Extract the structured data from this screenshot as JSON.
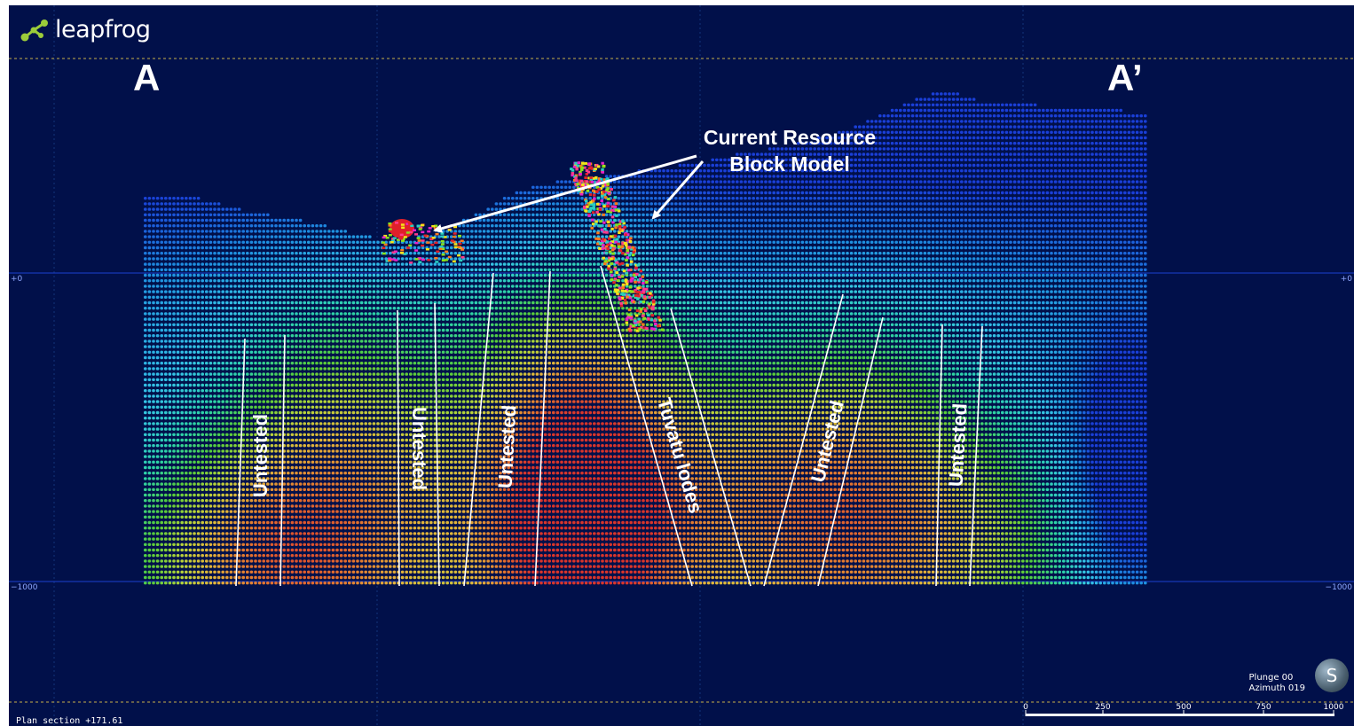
{
  "app": {
    "logo_text": "leapfrog"
  },
  "section": {
    "start_label": "A",
    "end_label": "A’"
  },
  "annotations": {
    "callout_line1": "Current Resource",
    "callout_line2": "Block Model",
    "untested_labels": [
      "Untested",
      "Untested",
      "Untested",
      "Untested",
      "Untested"
    ],
    "lodes_label": "Tuvatu lodes"
  },
  "elevation_labels": {
    "upper": "+0",
    "lower": "−1000"
  },
  "viewport": {
    "plunge": "Plunge 00",
    "azimuth": "Azimuth 019",
    "orientation_letter": "S",
    "plan_section": "Plan section +171.61"
  },
  "scale_bar": {
    "ticks": [
      "0",
      "250",
      "500",
      "750",
      "1000"
    ]
  },
  "colors": {
    "background": "#01104a",
    "gridline": "#1c3fd0",
    "annotation_line": "#ffffff",
    "ramp": [
      "#1a3fd8",
      "#1e8fe0",
      "#35c4e6",
      "#2dd3a6",
      "#56cc3a",
      "#b6d43a",
      "#e2b43a",
      "#e3762f",
      "#d8352b"
    ]
  }
}
